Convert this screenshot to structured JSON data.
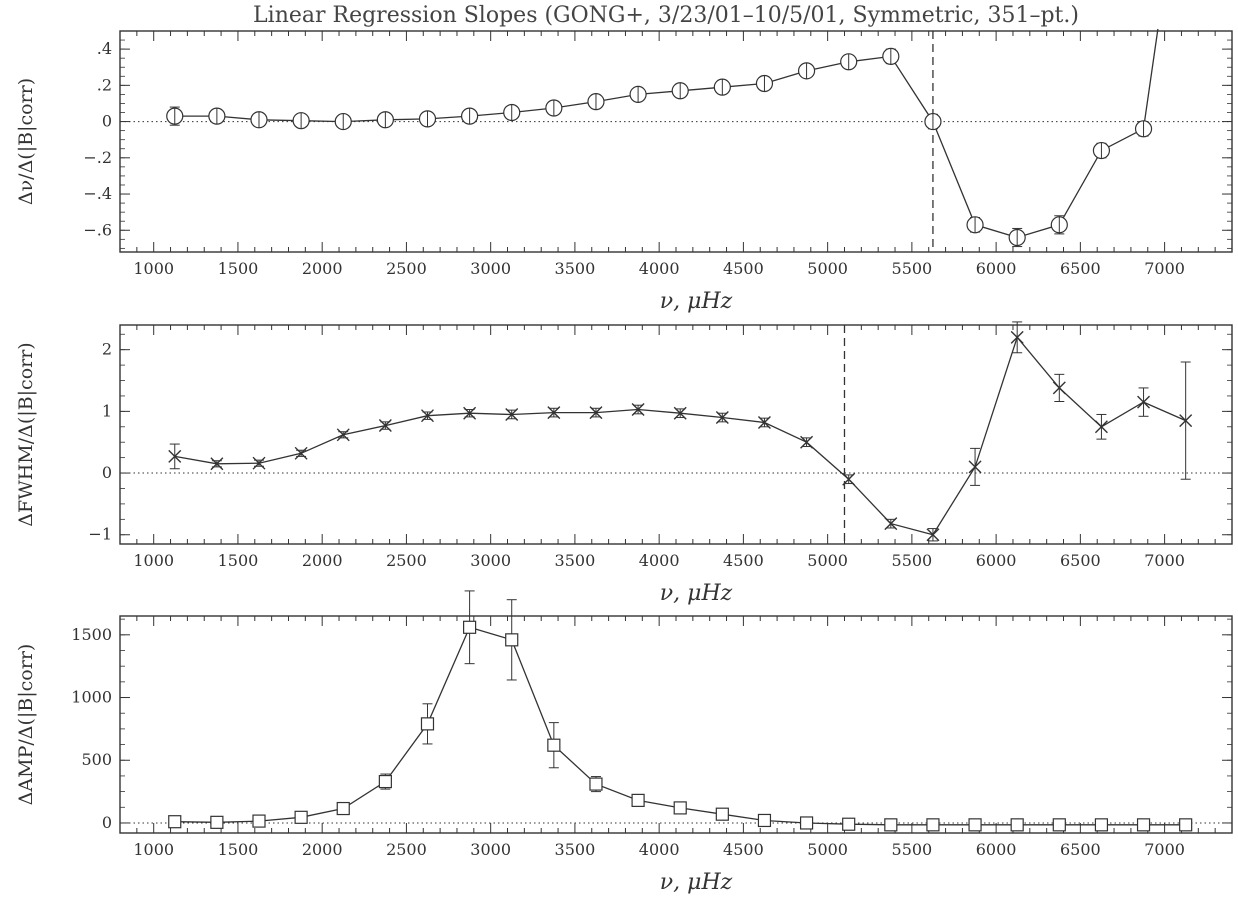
{
  "figure": {
    "title": "Linear Regression Slopes (GONG+, 3/23/01–10/5/01, Symmetric, 351–pt.)"
  },
  "chart_data": [
    {
      "type": "scatter",
      "panel": "top",
      "xlabel": "ν,  μHz",
      "ylabel": "Δν/Δ(|B|corr)",
      "xlim": [
        800,
        7400
      ],
      "ylim": [
        -0.72,
        0.5
      ],
      "xticks": [
        1000,
        1500,
        2000,
        2500,
        3000,
        3500,
        4000,
        4500,
        5000,
        5500,
        6000,
        6500,
        7000
      ],
      "xtick_labels": [
        "1000",
        "1500",
        "2000",
        "2500",
        "3000",
        "3500",
        "4000",
        "4500",
        "5000",
        "5500",
        "6000",
        "6500",
        "7000"
      ],
      "yticks": [
        -0.6,
        -0.4,
        -0.2,
        0,
        0.2,
        0.4
      ],
      "ytick_labels": [
        "−.6",
        "−.4",
        "−.2",
        "0",
        ".2",
        ".4"
      ],
      "marker": "circle",
      "reference_line_y": 0,
      "vline_x": 5625,
      "x": [
        1125,
        1375,
        1625,
        1875,
        2125,
        2375,
        2625,
        2875,
        3125,
        3375,
        3625,
        3875,
        4125,
        4375,
        4625,
        4875,
        5125,
        5375,
        5625,
        5875,
        6125,
        6375,
        6625,
        6875
      ],
      "y": [
        0.03,
        0.03,
        0.01,
        0.005,
        0.0,
        0.01,
        0.015,
        0.03,
        0.05,
        0.075,
        0.11,
        0.15,
        0.17,
        0.19,
        0.21,
        0.28,
        0.33,
        0.36,
        0.0,
        -0.57,
        -0.64,
        -0.57,
        -0.16,
        -0.04
      ],
      "yerr": [
        0.05,
        0.02,
        0.015,
        0.01,
        0.01,
        0.01,
        0.01,
        0.015,
        0.015,
        0.015,
        0.015,
        0.015,
        0.015,
        0.015,
        0.02,
        0.025,
        0.03,
        0.04,
        0.04,
        0.04,
        0.05,
        0.05,
        0.04,
        0.04
      ],
      "curve_exit": [
        6960,
        0.52
      ]
    },
    {
      "type": "scatter",
      "panel": "middle",
      "xlabel": "ν,  μHz",
      "ylabel": "ΔFWHM/Δ(|B|corr)",
      "xlim": [
        800,
        7400
      ],
      "ylim": [
        -1.15,
        2.4
      ],
      "xticks": [
        1000,
        1500,
        2000,
        2500,
        3000,
        3500,
        4000,
        4500,
        5000,
        5500,
        6000,
        6500,
        7000
      ],
      "xtick_labels": [
        "1000",
        "1500",
        "2000",
        "2500",
        "3000",
        "3500",
        "4000",
        "4500",
        "5000",
        "5500",
        "6000",
        "6500",
        "7000"
      ],
      "yticks": [
        -1,
        0,
        1,
        2
      ],
      "ytick_labels": [
        "−1",
        "0",
        "1",
        "2"
      ],
      "marker": "x",
      "reference_line_y": 0,
      "vline_x": 5100,
      "x": [
        1125,
        1375,
        1625,
        1875,
        2125,
        2375,
        2625,
        2875,
        3125,
        3375,
        3625,
        3875,
        4125,
        4375,
        4625,
        4875,
        5125,
        5375,
        5625,
        5875,
        6125,
        6375,
        6625,
        6875,
        7125
      ],
      "y": [
        0.27,
        0.15,
        0.16,
        0.32,
        0.62,
        0.77,
        0.93,
        0.97,
        0.95,
        0.98,
        0.98,
        1.03,
        0.97,
        0.9,
        0.82,
        0.5,
        -0.1,
        -0.82,
        -1.0,
        0.1,
        2.2,
        1.38,
        0.75,
        1.15,
        0.85
      ],
      "yerr": [
        0.2,
        0.05,
        0.05,
        0.05,
        0.05,
        0.06,
        0.06,
        0.06,
        0.07,
        0.07,
        0.07,
        0.07,
        0.07,
        0.07,
        0.07,
        0.07,
        0.07,
        0.07,
        0.1,
        0.3,
        0.25,
        0.22,
        0.2,
        0.23,
        0.95
      ]
    },
    {
      "type": "scatter",
      "panel": "bottom",
      "xlabel": "ν,  μHz",
      "ylabel": "ΔAMP/Δ(|B|corr)",
      "xlim": [
        800,
        7400
      ],
      "ylim": [
        -80,
        1650
      ],
      "xticks": [
        1000,
        1500,
        2000,
        2500,
        3000,
        3500,
        4000,
        4500,
        5000,
        5500,
        6000,
        6500,
        7000
      ],
      "xtick_labels": [
        "1000",
        "1500",
        "2000",
        "2500",
        "3000",
        "3500",
        "4000",
        "4500",
        "5000",
        "5500",
        "6000",
        "6500",
        "7000"
      ],
      "yticks": [
        0,
        500,
        1000,
        1500
      ],
      "ytick_labels": [
        "0",
        "500",
        "1000",
        "1500"
      ],
      "marker": "square",
      "reference_line_y": 0,
      "x": [
        1125,
        1375,
        1625,
        1875,
        2125,
        2375,
        2625,
        2875,
        3125,
        3375,
        3625,
        3875,
        4125,
        4375,
        4625,
        4875,
        5125,
        5375,
        5625,
        5875,
        6125,
        6375,
        6625,
        6875,
        7125
      ],
      "y": [
        10,
        5,
        15,
        45,
        115,
        330,
        790,
        1560,
        1460,
        620,
        310,
        180,
        120,
        70,
        20,
        0,
        -10,
        -15,
        -15,
        -15,
        -15,
        -15,
        -15,
        -15,
        -15
      ],
      "yerr": [
        20,
        15,
        15,
        20,
        40,
        60,
        160,
        290,
        320,
        180,
        60,
        30,
        25,
        20,
        15,
        10,
        10,
        10,
        10,
        10,
        10,
        10,
        10,
        10,
        10
      ]
    }
  ]
}
